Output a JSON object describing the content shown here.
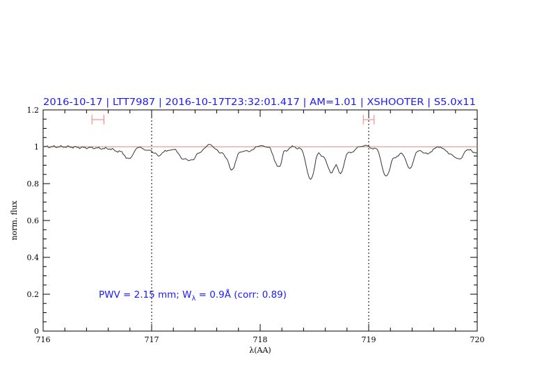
{
  "chart_data": {
    "type": "line",
    "title": "2016-10-17  |  LTT7987  |  2016-10-17T23:32:01.417  |  AM=1.01  |  XSHOOTER  |  S5.0x11",
    "xlabel": "λ(AA)",
    "ylabel": "norm. flux",
    "xlim": [
      716,
      720
    ],
    "ylim": [
      0,
      1.2
    ],
    "x_ticks": [
      "716",
      "717",
      "718",
      "719",
      "720"
    ],
    "y_ticks": [
      "0",
      "0.2",
      "0.4",
      "0.6",
      "0.8",
      "1",
      "1.2"
    ],
    "grid": false,
    "reference_line": {
      "y": 1.0,
      "color": "#cc8888"
    },
    "dotted_vlines": [
      717,
      719
    ],
    "ranges": [
      {
        "x_from": 716.45,
        "x_to": 716.56,
        "y": 1.147,
        "color": "#ff7777"
      },
      {
        "x_from": 718.95,
        "x_to": 719.05,
        "y": 1.147,
        "color": "#ff7777"
      }
    ],
    "annotation": {
      "prefix": "PWV = 2.15 mm; W",
      "sub": "λ",
      "suffix": " = 0.9Å (corr: 0.89)"
    },
    "series": [
      {
        "color": "#333333",
        "x": [
          716.0,
          716.2,
          716.4,
          716.6,
          716.7,
          716.79,
          716.885,
          717.0,
          717.06,
          717.15,
          717.22,
          717.28,
          717.365,
          717.45,
          717.53,
          717.6,
          717.66,
          717.745,
          717.81,
          717.88,
          717.985,
          718.08,
          718.17,
          718.23,
          718.295,
          718.37,
          718.465,
          718.54,
          718.59,
          718.65,
          718.7,
          718.74,
          718.81,
          718.95,
          719.065,
          719.16,
          719.235,
          719.3,
          719.38,
          719.45,
          719.53,
          719.66,
          719.75,
          719.845,
          719.9,
          720.0
        ],
        "y": [
          1.0,
          1.0,
          0.995,
          0.99,
          0.975,
          0.938,
          0.994,
          0.976,
          0.953,
          0.98,
          0.985,
          0.935,
          0.926,
          0.972,
          1.008,
          0.98,
          0.96,
          0.875,
          0.972,
          0.976,
          1.0,
          0.997,
          0.888,
          0.979,
          1.0,
          0.99,
          0.824,
          0.966,
          0.94,
          0.859,
          0.897,
          0.85,
          0.966,
          1.006,
          0.99,
          0.84,
          0.94,
          0.966,
          0.88,
          0.975,
          0.965,
          1.0,
          0.96,
          0.935,
          0.985,
          0.968
        ]
      }
    ]
  }
}
